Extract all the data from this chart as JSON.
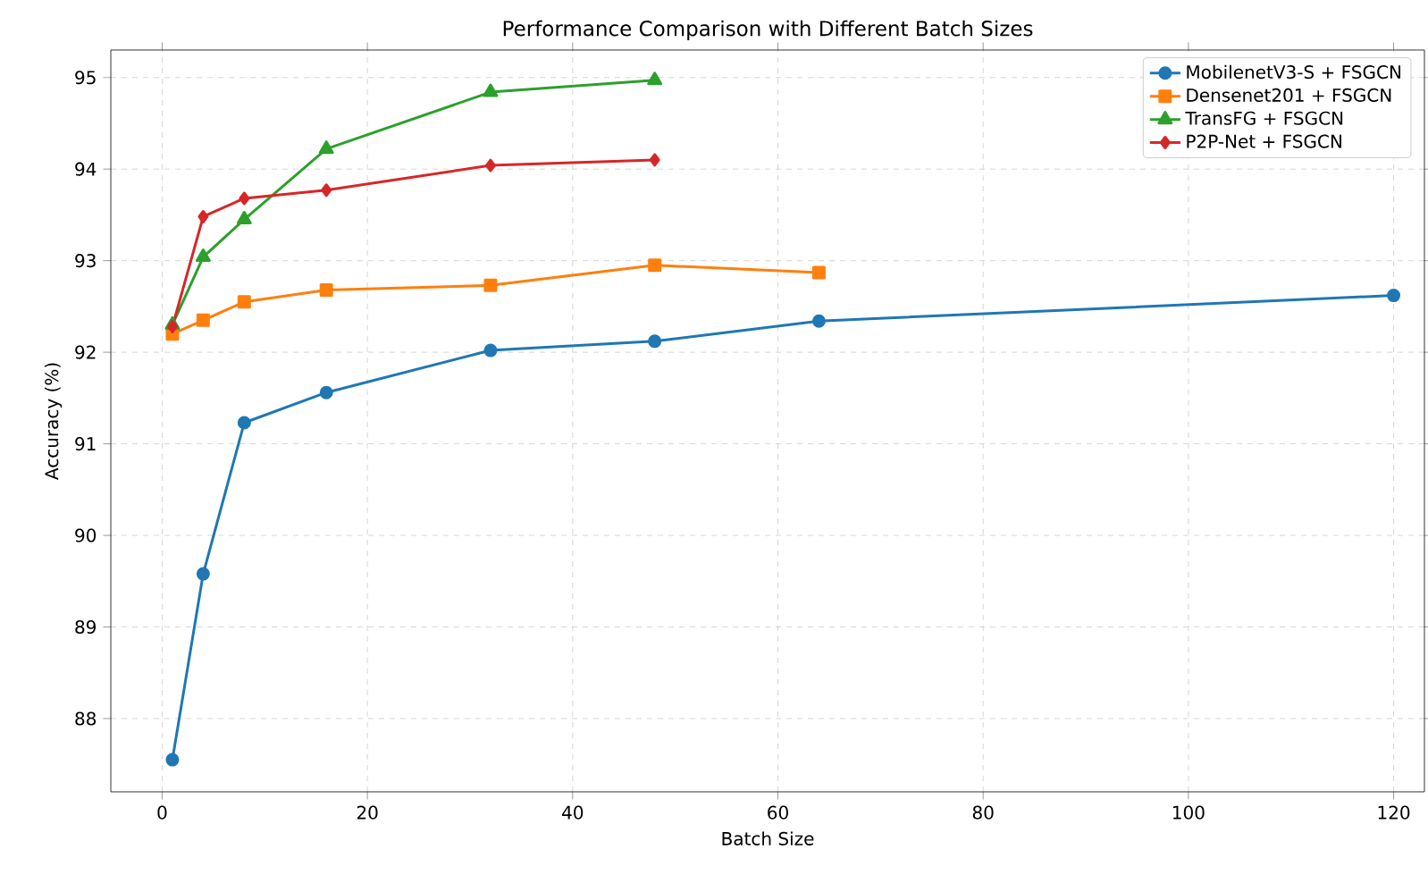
{
  "chart_data": {
    "type": "line",
    "title": "Performance Comparison with Different Batch Sizes",
    "xlabel": "Batch Size",
    "ylabel": "Accuracy (%)",
    "xlim": [
      -5,
      123
    ],
    "ylim": [
      87.2,
      95.3
    ],
    "xticks": [
      0,
      20,
      40,
      60,
      80,
      100,
      120
    ],
    "yticks": [
      88,
      89,
      90,
      91,
      92,
      93,
      94,
      95
    ],
    "grid": true,
    "legend": "top right",
    "line_style": "solid",
    "series": [
      {
        "name": "MobilenetV3-S + FSGCN",
        "color": "#1f77b4",
        "marker": "circle",
        "x": [
          1,
          4,
          8,
          16,
          32,
          48,
          64,
          120
        ],
        "values": [
          87.55,
          89.58,
          91.23,
          91.56,
          92.02,
          92.12,
          92.34,
          92.62
        ]
      },
      {
        "name": "Densenet201 + FSGCN",
        "color": "#ff7f0e",
        "marker": "square",
        "x": [
          1,
          4,
          8,
          16,
          32,
          48,
          64
        ],
        "values": [
          92.2,
          92.35,
          92.55,
          92.68,
          92.73,
          92.95,
          92.87
        ]
      },
      {
        "name": "TransFG + FSGCN",
        "color": "#2ca02c",
        "marker": "triangle",
        "x": [
          1,
          4,
          8,
          16,
          32,
          48
        ],
        "values": [
          92.3,
          93.04,
          93.45,
          94.22,
          94.84,
          94.97
        ]
      },
      {
        "name": "P2P-Net + FSGCN",
        "color": "#d62728",
        "marker": "diamond",
        "x": [
          1,
          4,
          8,
          16,
          32,
          48
        ],
        "values": [
          92.28,
          93.48,
          93.68,
          93.77,
          94.04,
          94.1
        ]
      }
    ]
  }
}
